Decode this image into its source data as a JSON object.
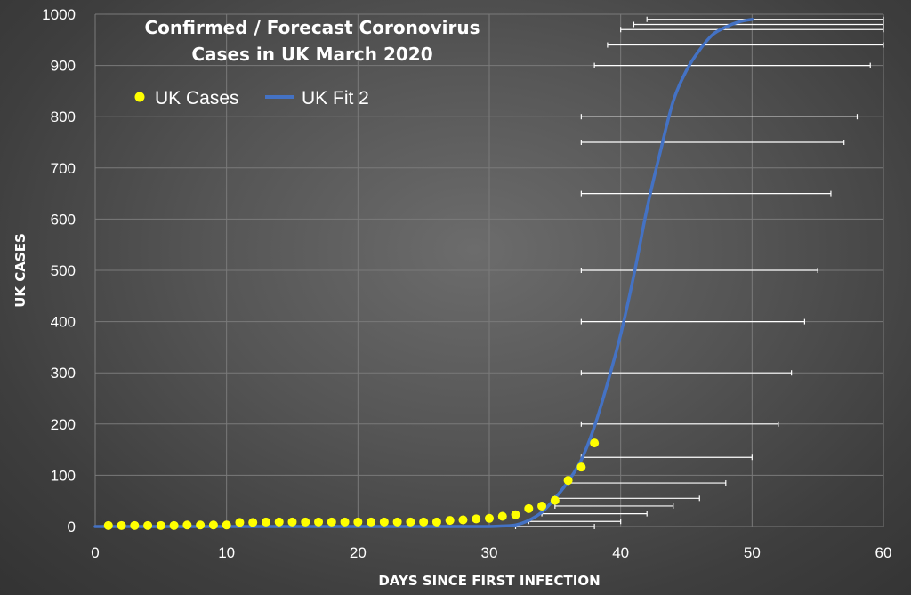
{
  "chart_data": {
    "type": "scatter",
    "title": [
      "Confirmed / Forecast Coronovirus",
      "Cases in UK March 2020"
    ],
    "xlabel": "DAYS SINCE FIRST INFECTION",
    "ylabel": "UK  CASES",
    "xlim": [
      0,
      60
    ],
    "ylim": [
      0,
      1000
    ],
    "xticks": [
      0,
      10,
      20,
      30,
      40,
      50,
      60
    ],
    "yticks": [
      0,
      100,
      200,
      300,
      400,
      500,
      600,
      700,
      800,
      900,
      1000
    ],
    "grid": true,
    "legend_position": "top-left",
    "colors": {
      "cases": "#ffff00",
      "fit": "#4472c4",
      "error_bars": "#ffffff",
      "grid": "#7a7a7a"
    },
    "series": [
      {
        "name": "UK Cases",
        "kind": "points",
        "x": [
          1,
          2,
          3,
          4,
          5,
          6,
          7,
          8,
          9,
          10,
          11,
          12,
          13,
          14,
          15,
          16,
          17,
          18,
          19,
          20,
          21,
          22,
          23,
          24,
          25,
          26,
          27,
          28,
          29,
          30,
          31,
          32,
          33,
          34,
          35,
          36,
          37,
          38
        ],
        "y": [
          2,
          2,
          2,
          2,
          2,
          2,
          3,
          3,
          3,
          3,
          8,
          8,
          9,
          9,
          9,
          9,
          9,
          9,
          9,
          9,
          9,
          9,
          9,
          9,
          9,
          9,
          12,
          13,
          15,
          16,
          20,
          23,
          35,
          40,
          51,
          90,
          116,
          163
        ]
      },
      {
        "name": "UK Fit 2",
        "kind": "line",
        "x": [
          0,
          5,
          10,
          15,
          20,
          25,
          27,
          28,
          29,
          30,
          31,
          32,
          33,
          34,
          35,
          36,
          37,
          38,
          39,
          40,
          41,
          42,
          43,
          44,
          45,
          46,
          47,
          48,
          49,
          50
        ],
        "y": [
          0,
          0,
          0,
          0,
          0,
          0,
          0,
          0,
          0,
          0,
          1,
          3,
          12,
          28,
          55,
          88,
          130,
          195,
          280,
          375,
          490,
          620,
          730,
          830,
          890,
          930,
          960,
          975,
          985,
          990
        ]
      },
      {
        "name": "Error bars",
        "kind": "error_bars",
        "y": [
          0,
          10,
          25,
          40,
          55,
          85,
          135,
          200,
          300,
          400,
          500,
          650,
          750,
          800,
          900,
          940,
          970,
          980,
          990
        ],
        "x_start": [
          32,
          33,
          34,
          35,
          35,
          36,
          37,
          37,
          37,
          37,
          37,
          37,
          37,
          37,
          38,
          39,
          40,
          41,
          42
        ],
        "x_end": [
          38,
          40,
          42,
          44,
          46,
          48,
          50,
          52,
          53,
          54,
          55,
          56,
          57,
          58,
          59,
          60,
          60,
          60,
          60
        ]
      }
    ]
  }
}
